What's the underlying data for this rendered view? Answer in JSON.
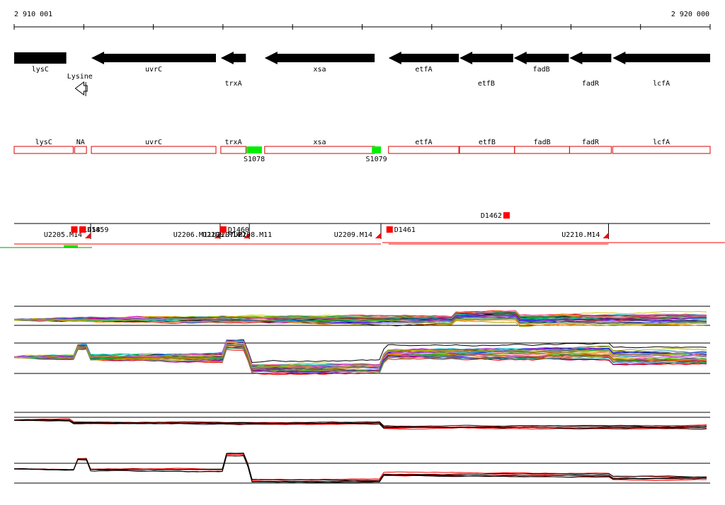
{
  "ruler": {
    "start_label": "2 910 001",
    "end_label": "2 920 000",
    "start": 2910001,
    "end": 2920000
  },
  "genes": [
    {
      "name": "lysC",
      "start": 2910001,
      "end": 2910750,
      "strand": "+",
      "label_row": 0
    },
    {
      "name": "uvrC",
      "start": 2911110,
      "end": 2912900,
      "strand": "-",
      "label_row": 0
    },
    {
      "name": "trxA",
      "start": 2912970,
      "end": 2913330,
      "strand": "-",
      "label_row": 1
    },
    {
      "name": "xsa",
      "start": 2913600,
      "end": 2915180,
      "strand": "-",
      "label_row": 0
    },
    {
      "name": "etfA",
      "start": 2915380,
      "end": 2916390,
      "strand": "-",
      "label_row": 0
    },
    {
      "name": "etfB",
      "start": 2916400,
      "end": 2917170,
      "strand": "-",
      "label_row": 1
    },
    {
      "name": "fadB",
      "start": 2917180,
      "end": 2917970,
      "strand": "-",
      "label_row": 0
    },
    {
      "name": "fadR",
      "start": 2917980,
      "end": 2918580,
      "strand": "-",
      "label_row": 1
    },
    {
      "name": "lcfA",
      "start": 2918600,
      "end": 2920000,
      "strand": "-",
      "label_row": 1
    }
  ],
  "riboswitch": {
    "name": "Lysine",
    "start": 2910880,
    "end": 2911050,
    "strand": "-"
  },
  "operon_boxes": [
    {
      "name": "lysC",
      "start": 2910001,
      "end": 2910850
    },
    {
      "name": "NA",
      "start": 2910870,
      "end": 2911040
    },
    {
      "name": "uvrC",
      "start": 2911110,
      "end": 2912900
    },
    {
      "name": "trxA",
      "start": 2912970,
      "end": 2913330
    },
    {
      "name": "xsa",
      "start": 2913600,
      "end": 2915180
    },
    {
      "name": "etfA",
      "start": 2915380,
      "end": 2916390
    },
    {
      "name": "etfB",
      "start": 2916400,
      "end": 2917190
    },
    {
      "name": "fadB",
      "start": 2917190,
      "end": 2917980
    },
    {
      "name": "fadR",
      "start": 2917980,
      "end": 2918580
    },
    {
      "name": "lcfA",
      "start": 2918600,
      "end": 2920000
    }
  ],
  "sites": [
    {
      "name": "S1078",
      "start": 2913340,
      "end": 2913560,
      "color": "#00ee00"
    },
    {
      "name": "S1079",
      "start": 2915140,
      "end": 2915270,
      "color": "#00ee00"
    }
  ],
  "transcription_units": [
    {
      "name": "U2205.M14",
      "start": 2910001,
      "end": 2911100,
      "row": 0
    },
    {
      "name": "U2206.M11",
      "start": 2911100,
      "end": 2912960,
      "row": 0
    },
    {
      "name": "U2208.M14",
      "start": 2912960,
      "end": 2913380,
      "row": 0
    },
    {
      "name": "U2209.M14",
      "start": 2913380,
      "end": 2915270,
      "row": 0
    },
    {
      "name": "U2210.M14",
      "start": 2915380,
      "end": 2918540,
      "row": 0
    }
  ],
  "tu_extra_labels": [
    "U2207.M1",
    "U2208.M11"
  ],
  "promoters": [
    {
      "name": "D1458",
      "pos": 2910860
    },
    {
      "name": "D1459",
      "pos": 2910980
    },
    {
      "name": "D1460",
      "pos": 2913000
    },
    {
      "name": "D1461",
      "pos": 2915390
    },
    {
      "name": "D1462",
      "pos": 2917070
    }
  ],
  "colors": {
    "gene_arrow": "#000000",
    "operon_outline": "#dd0000",
    "tu_marker": "#ff0000",
    "site_green": "#00ee00",
    "profile_black": "#000000",
    "profile_red": "#ff0000"
  }
}
